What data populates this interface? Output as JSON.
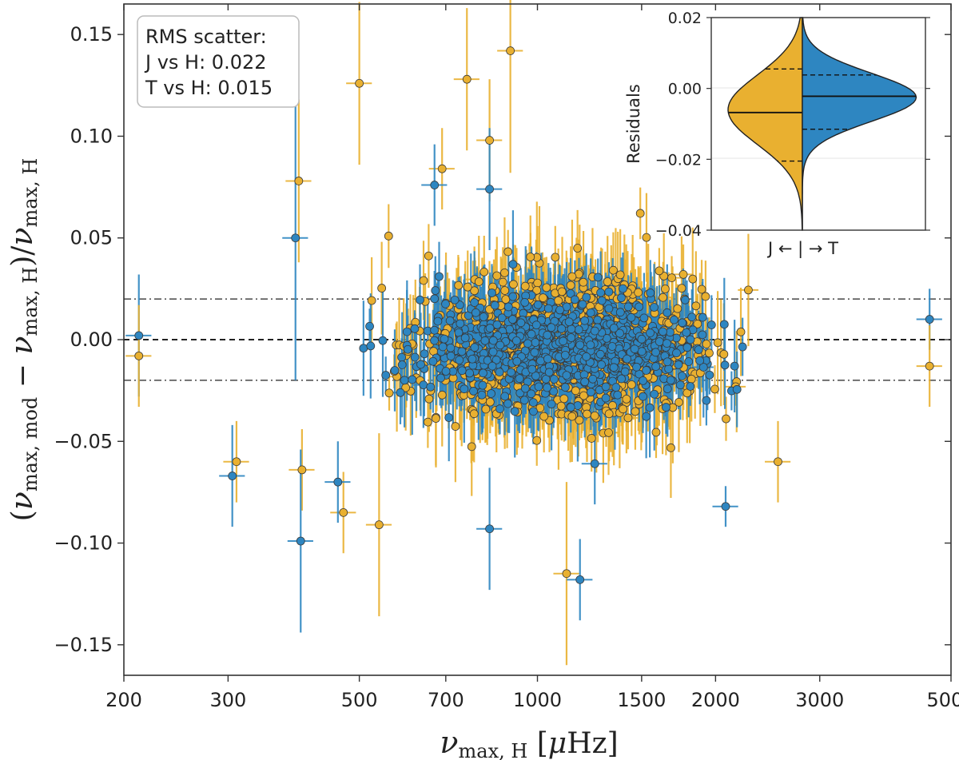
{
  "chart_data": {
    "type": "scatter",
    "xlabel": "νmax, H [μHz]",
    "ylabel": "(νmax, mod − νmax, H)/νmax, H",
    "xscale": "log",
    "xlim": [
      200,
      5000
    ],
    "ylim": [
      -0.165,
      0.165
    ],
    "x_ticks": [
      200,
      300,
      500,
      700,
      1000,
      1500,
      2000,
      3000,
      5000
    ],
    "x_tick_labels": [
      "200",
      "300",
      "500",
      "700",
      "1000",
      "1500",
      "2000",
      "3000",
      "5000"
    ],
    "y_ticks": [
      -0.15,
      -0.1,
      -0.05,
      0.0,
      0.05,
      0.1,
      0.15
    ],
    "y_tick_labels": [
      "−0.15",
      "−0.10",
      "−0.05",
      "0.00",
      "0.05",
      "0.10",
      "0.15"
    ],
    "reference_lines": [
      {
        "y": 0.0,
        "style": "dashed"
      },
      {
        "y": 0.02,
        "style": "dashdot"
      },
      {
        "y": -0.02,
        "style": "dashdot"
      }
    ],
    "legend_box": {
      "title": "RMS scatter:",
      "lines": [
        "J vs H: 0.022",
        "T vs H: 0.015"
      ]
    },
    "series": [
      {
        "name": "J",
        "color": "#E9B030",
        "rms": 0.022,
        "n_points": 900,
        "seed": 7
      },
      {
        "name": "T",
        "color": "#2E86C1",
        "rms": 0.015,
        "n_points": 900,
        "seed": 13
      }
    ],
    "highlighted_points": [
      {
        "series": "J",
        "x": 900,
        "y": 0.142,
        "yerr": 0.06
      },
      {
        "series": "J",
        "x": 500,
        "y": 0.126,
        "yerr": 0.04
      },
      {
        "series": "J",
        "x": 760,
        "y": 0.128,
        "yerr": 0.035
      },
      {
        "series": "J",
        "x": 830,
        "y": 0.098,
        "yerr": 0.03
      },
      {
        "series": "J",
        "x": 690,
        "y": 0.084,
        "yerr": 0.02
      },
      {
        "series": "J",
        "x": 395,
        "y": 0.078,
        "yerr": 0.04
      },
      {
        "series": "J",
        "x": 1120,
        "y": -0.115,
        "yerr": 0.045
      },
      {
        "series": "J",
        "x": 540,
        "y": -0.091,
        "yerr": 0.045
      },
      {
        "series": "J",
        "x": 470,
        "y": -0.085,
        "yerr": 0.02
      },
      {
        "series": "J",
        "x": 400,
        "y": -0.064,
        "yerr": 0.02
      },
      {
        "series": "J",
        "x": 2550,
        "y": -0.06,
        "yerr": 0.02
      },
      {
        "series": "J",
        "x": 310,
        "y": -0.06,
        "yerr": 0.02
      },
      {
        "series": "T",
        "x": 670,
        "y": 0.076,
        "yerr": 0.02
      },
      {
        "series": "T",
        "x": 830,
        "y": 0.074,
        "yerr": 0.03
      },
      {
        "series": "T",
        "x": 390,
        "y": 0.05,
        "yerr": 0.07
      },
      {
        "series": "T",
        "x": 398,
        "y": -0.099,
        "yerr": 0.045
      },
      {
        "series": "T",
        "x": 1180,
        "y": -0.118,
        "yerr": 0.02
      },
      {
        "series": "T",
        "x": 830,
        "y": -0.093,
        "yerr": 0.03
      },
      {
        "series": "T",
        "x": 2080,
        "y": -0.082,
        "yerr": 0.01
      },
      {
        "series": "T",
        "x": 460,
        "y": -0.07,
        "yerr": 0.02
      },
      {
        "series": "T",
        "x": 305,
        "y": -0.067,
        "yerr": 0.025
      },
      {
        "series": "T",
        "x": 1250,
        "y": -0.061,
        "yerr": 0.02
      },
      {
        "series": "T",
        "x": 4600,
        "y": 0.01,
        "yerr": 0.015
      },
      {
        "series": "J",
        "x": 4600,
        "y": -0.013,
        "yerr": 0.02
      },
      {
        "series": "T",
        "x": 212,
        "y": 0.002,
        "yerr": 0.03
      },
      {
        "series": "J",
        "x": 212,
        "y": -0.008,
        "yerr": 0.025
      }
    ],
    "inset": {
      "type": "violin",
      "ylabel": "Residuals",
      "xlabel": "J ← | → T",
      "ylim": [
        -0.04,
        0.02
      ],
      "y_ticks": [
        -0.04,
        -0.02,
        0.0,
        0.02
      ],
      "y_tick_labels": [
        "−0.04",
        "−0.02",
        "0.00",
        "0.02"
      ],
      "sides": [
        {
          "name": "J",
          "color": "#E9B030",
          "median": -0.0068,
          "q1": -0.0205,
          "q3": 0.0055
        },
        {
          "name": "T",
          "color": "#2E86C1",
          "median": -0.0022,
          "q1": -0.0115,
          "q3": 0.0038
        }
      ]
    }
  }
}
